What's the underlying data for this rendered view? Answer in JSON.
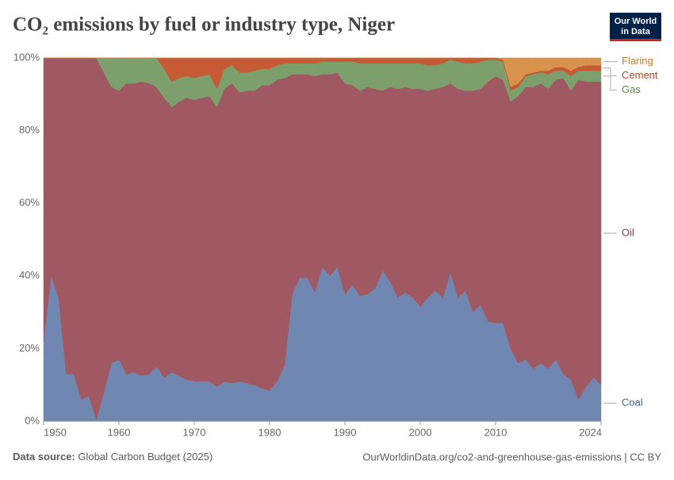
{
  "chart_data": {
    "type": "area",
    "stacked": true,
    "title": "CO₂ emissions by fuel or industry type, Niger",
    "logo": [
      "Our World",
      "in Data"
    ],
    "source_label": "Data source:",
    "source": "Global Carbon Budget (2025)",
    "url": "OurWorldinData.org/co2-and-greenhouse-gas-emissions | CC BY",
    "x": [
      1950,
      1951,
      1952,
      1953,
      1954,
      1955,
      1956,
      1957,
      1958,
      1959,
      1960,
      1961,
      1962,
      1963,
      1964,
      1965,
      1966,
      1967,
      1968,
      1969,
      1970,
      1971,
      1972,
      1973,
      1974,
      1975,
      1976,
      1977,
      1978,
      1979,
      1980,
      1981,
      1982,
      1983,
      1984,
      1985,
      1986,
      1987,
      1988,
      1989,
      1990,
      1991,
      1992,
      1993,
      1994,
      1995,
      1996,
      1997,
      1998,
      1999,
      2000,
      2001,
      2002,
      2003,
      2004,
      2005,
      2006,
      2007,
      2008,
      2009,
      2010,
      2011,
      2012,
      2013,
      2014,
      2015,
      2016,
      2017,
      2018,
      2019,
      2020,
      2021,
      2022,
      2023,
      2024
    ],
    "xlim": [
      1950,
      2024
    ],
    "xticks": [
      1950,
      1960,
      1970,
      1980,
      1990,
      2000,
      2010,
      2024
    ],
    "ylim": [
      0,
      100
    ],
    "yticks": [
      {
        "value": 0,
        "label": "0%"
      },
      {
        "value": 20,
        "label": "20%"
      },
      {
        "value": 40,
        "label": "40%"
      },
      {
        "value": 60,
        "label": "60%"
      },
      {
        "value": 80,
        "label": "80%"
      },
      {
        "value": 100,
        "label": "100%"
      }
    ],
    "grid": true,
    "series": [
      {
        "name": "Coal",
        "color": "#6f87b1",
        "label_color": "#4565a0",
        "values": [
          22,
          40,
          34,
          13,
          13,
          6,
          7,
          0.5,
          8,
          16,
          17,
          13,
          13.5,
          12.5,
          13,
          15,
          12,
          13.5,
          12.5,
          11.5,
          11,
          11,
          11,
          9.5,
          11,
          10.5,
          11,
          10.5,
          10,
          9,
          8.5,
          11,
          15.5,
          35,
          39.5,
          39.5,
          35.5,
          42.5,
          40,
          42.5,
          35,
          37.5,
          34.5,
          35,
          36.5,
          41.5,
          38.5,
          34,
          35.5,
          34,
          31.5,
          34,
          36,
          34,
          41,
          34,
          36,
          30,
          32,
          27.5,
          27,
          27,
          20,
          16,
          17,
          14.5,
          16,
          14.5,
          17,
          13,
          11.5,
          6,
          9.5,
          12,
          10
        ]
      },
      {
        "name": "Oil",
        "color": "#a05962",
        "label_color": "#8b3a45",
        "values": [
          78,
          60,
          66,
          87,
          87,
          94,
          93,
          99.5,
          88,
          76,
          74,
          80,
          79.5,
          81,
          80,
          77,
          77,
          73,
          75.5,
          77.5,
          77.5,
          78,
          78.5,
          77,
          80.5,
          82.5,
          79.5,
          80.5,
          81,
          83.5,
          84,
          83,
          79,
          60.5,
          56,
          56,
          59.5,
          53,
          55.5,
          53.5,
          58,
          55,
          56.5,
          57,
          55,
          49.5,
          53.5,
          57.5,
          56.5,
          57.5,
          60,
          57,
          55.5,
          58,
          52,
          57.5,
          55,
          61,
          59.5,
          66,
          68,
          67,
          68,
          73.5,
          75,
          77.5,
          77,
          77,
          77,
          81.5,
          79.5,
          88,
          84,
          81.5,
          83.5
        ]
      },
      {
        "name": "Gas",
        "color": "#7c9f6c",
        "label_color": "#5b8a4a",
        "values": [
          0,
          0,
          0,
          0,
          0,
          0,
          0,
          0,
          4,
          8,
          9,
          7,
          7,
          6.5,
          7,
          8,
          8,
          7,
          6.5,
          6,
          6,
          6,
          6,
          5,
          5.5,
          5,
          5.5,
          5,
          5.5,
          4.5,
          4.5,
          4,
          4,
          3,
          3,
          3,
          3.5,
          3.5,
          3.5,
          3,
          6,
          6.5,
          7.5,
          6.5,
          7,
          7.5,
          6.5,
          7,
          6.5,
          7,
          7,
          7,
          6.5,
          6.5,
          6.5,
          7.5,
          7.5,
          7.5,
          7.5,
          6,
          4.5,
          5,
          3,
          2.5,
          3,
          3.5,
          3,
          4,
          2.5,
          2,
          4,
          2.5,
          3,
          3,
          3
        ]
      },
      {
        "name": "Cement",
        "color": "#c55a34",
        "label_color": "#b04a2a",
        "values": [
          0,
          0,
          0,
          0,
          0,
          0,
          0,
          0,
          0,
          0,
          0,
          0,
          0,
          0,
          0,
          0,
          3,
          6.5,
          5.5,
          5,
          5.5,
          5,
          4.5,
          8.5,
          3,
          2,
          4,
          4,
          3.5,
          3,
          3,
          2,
          1.5,
          1.5,
          1.5,
          1.5,
          1.5,
          1,
          1,
          1,
          1,
          1,
          1.5,
          1.5,
          1.5,
          1.5,
          1.5,
          1.5,
          1.5,
          1.5,
          1.5,
          2,
          2,
          1.5,
          0.5,
          1,
          1.5,
          1.5,
          1,
          0.5,
          0.5,
          0.5,
          1,
          1,
          0.5,
          0.5,
          0.5,
          1,
          1,
          1,
          1.5,
          1,
          1.5,
          1.5,
          1.5
        ]
      },
      {
        "name": "Flaring",
        "color": "#d9924c",
        "label_color": "#c97a2b",
        "values": [
          0,
          0,
          0,
          0,
          0,
          0,
          0,
          0,
          0,
          0,
          0,
          0,
          0,
          0,
          0,
          0,
          0,
          0,
          0,
          0,
          0,
          0,
          0,
          0,
          0,
          0,
          0,
          0,
          0,
          0,
          0,
          0,
          0,
          0,
          0,
          0,
          0,
          0,
          0,
          0,
          0,
          0,
          0,
          0,
          0,
          0,
          0,
          0,
          0,
          0,
          0,
          0,
          0,
          0,
          0,
          0,
          0,
          0,
          0,
          0,
          0,
          0.5,
          8,
          7,
          4.5,
          4,
          3.5,
          3.5,
          2.5,
          2.5,
          3.5,
          2.5,
          2,
          2,
          2
        ]
      }
    ]
  }
}
